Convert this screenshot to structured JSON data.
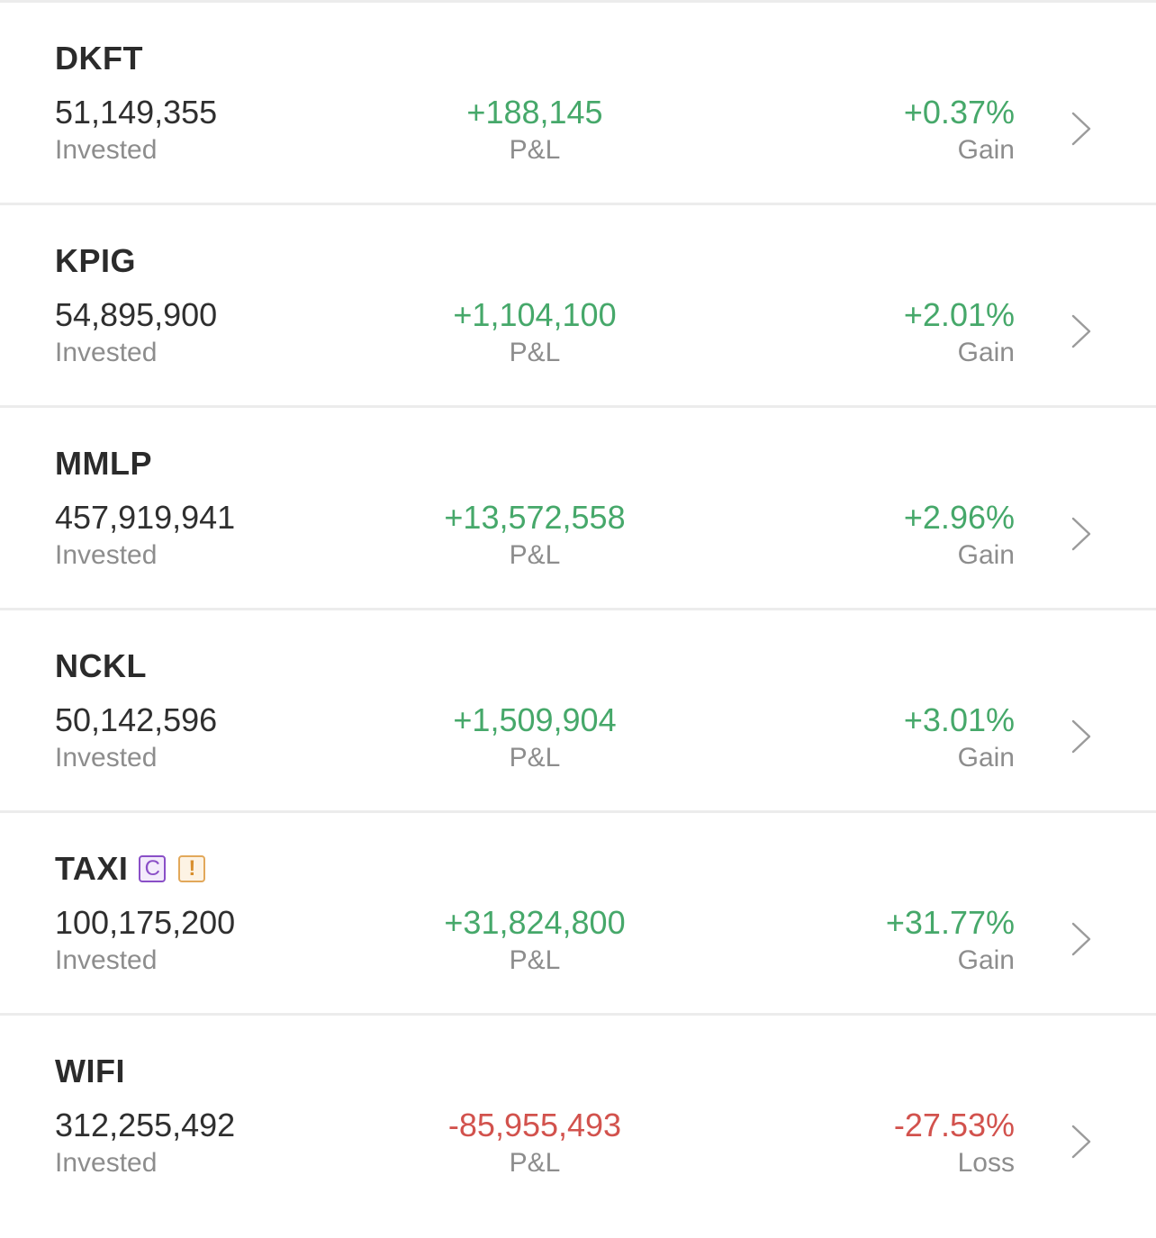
{
  "colors": {
    "gain": "#46a86a",
    "loss": "#d2524d",
    "label": "#8d8d8d",
    "text": "#2f2f2f",
    "badge_c": "#8a4fc7",
    "badge_warning": "#e2a85a"
  },
  "holdings": [
    {
      "ticker": "DKFT",
      "invested": "51,149,355",
      "invested_label": "Invested",
      "pl": "+188,145",
      "pl_label": "P&L",
      "pct": "+0.37%",
      "pct_label": "Gain",
      "trend": "pos",
      "badges": []
    },
    {
      "ticker": "KPIG",
      "invested": "54,895,900",
      "invested_label": "Invested",
      "pl": "+1,104,100",
      "pl_label": "P&L",
      "pct": "+2.01%",
      "pct_label": "Gain",
      "trend": "pos",
      "badges": []
    },
    {
      "ticker": "MMLP",
      "invested": "457,919,941",
      "invested_label": "Invested",
      "pl": "+13,572,558",
      "pl_label": "P&L",
      "pct": "+2.96%",
      "pct_label": "Gain",
      "trend": "pos",
      "badges": []
    },
    {
      "ticker": "NCKL",
      "invested": "50,142,596",
      "invested_label": "Invested",
      "pl": "+1,509,904",
      "pl_label": "P&L",
      "pct": "+3.01%",
      "pct_label": "Gain",
      "trend": "pos",
      "badges": []
    },
    {
      "ticker": "TAXI",
      "invested": "100,175,200",
      "invested_label": "Invested",
      "pl": "+31,824,800",
      "pl_label": "P&L",
      "pct": "+31.77%",
      "pct_label": "Gain",
      "trend": "pos",
      "badges": [
        {
          "text": "C",
          "kind": "badge-c",
          "icon": "c-badge-icon"
        },
        {
          "text": "!",
          "kind": "badge-warn",
          "icon": "warning-badge-icon"
        }
      ]
    },
    {
      "ticker": "WIFI",
      "invested": "312,255,492",
      "invested_label": "Invested",
      "pl": "-85,955,493",
      "pl_label": "P&L",
      "pct": "-27.53%",
      "pct_label": "Loss",
      "trend": "neg",
      "badges": []
    }
  ]
}
